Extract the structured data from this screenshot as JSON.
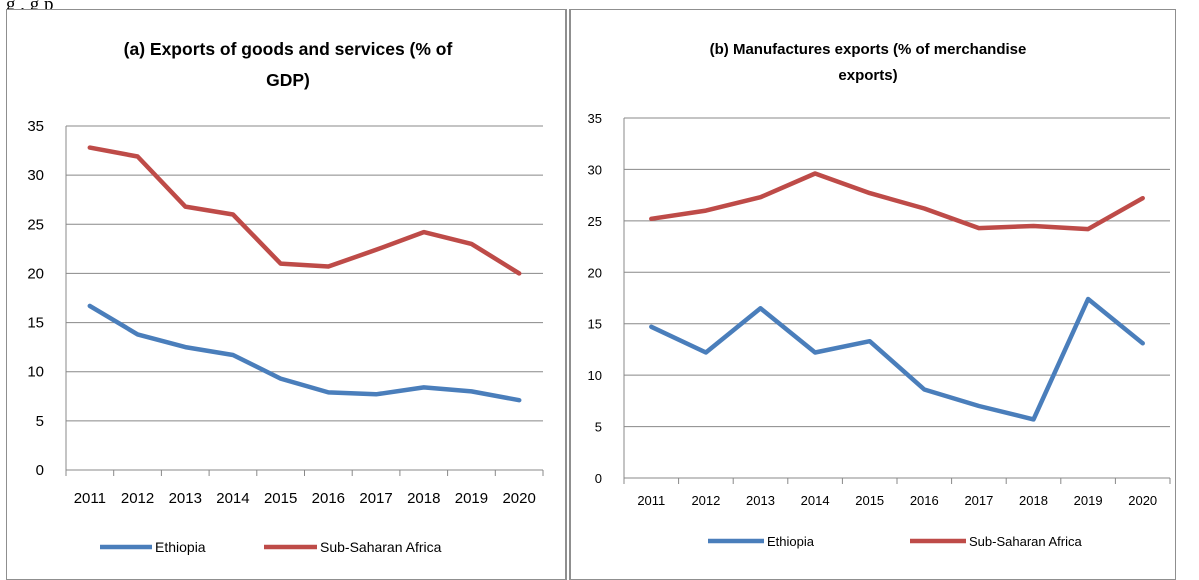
{
  "figure_caption": "g ,                     g            p",
  "chart_data": [
    {
      "type": "line",
      "title": "(a) Exports of goods and services (% of GDP)",
      "categories": [
        "2011",
        "2012",
        "2013",
        "2014",
        "2015",
        "2016",
        "2017",
        "2018",
        "2019",
        "2020"
      ],
      "series": [
        {
          "name": "Ethiopia",
          "color": "#4a7ebb",
          "values": [
            16.7,
            13.8,
            12.5,
            11.7,
            9.3,
            7.9,
            7.7,
            8.4,
            8.0,
            7.1
          ]
        },
        {
          "name": "Sub-Saharan Africa",
          "color": "#be4b48",
          "values": [
            32.8,
            31.9,
            26.8,
            26.0,
            21.0,
            20.7,
            22.4,
            24.2,
            23.0,
            20.0
          ]
        }
      ],
      "yticks": [
        "0",
        "5",
        "10",
        "15",
        "20",
        "25",
        "30",
        "35"
      ],
      "ylim": [
        0,
        35
      ],
      "grid": true,
      "legend": "bottom",
      "xlabel": "",
      "ylabel": ""
    },
    {
      "type": "line",
      "title": "(b) Manufactures exports (% of merchandise exports)",
      "categories": [
        "2011",
        "2012",
        "2013",
        "2014",
        "2015",
        "2016",
        "2017",
        "2018",
        "2019",
        "2020"
      ],
      "series": [
        {
          "name": "Ethiopia",
          "color": "#4a7ebb",
          "values": [
            14.7,
            12.2,
            16.5,
            12.2,
            13.3,
            8.6,
            7.0,
            5.7,
            17.4,
            13.1
          ]
        },
        {
          "name": "Sub-Saharan Africa",
          "color": "#be4b48",
          "values": [
            25.2,
            26.0,
            27.3,
            29.6,
            27.7,
            26.2,
            24.3,
            24.5,
            24.2,
            27.2
          ]
        }
      ],
      "yticks": [
        "0",
        "5",
        "10",
        "15",
        "20",
        "25",
        "30",
        "35"
      ],
      "ylim": [
        0,
        35
      ],
      "grid": true,
      "legend": "bottom",
      "xlabel": "",
      "ylabel": ""
    }
  ]
}
